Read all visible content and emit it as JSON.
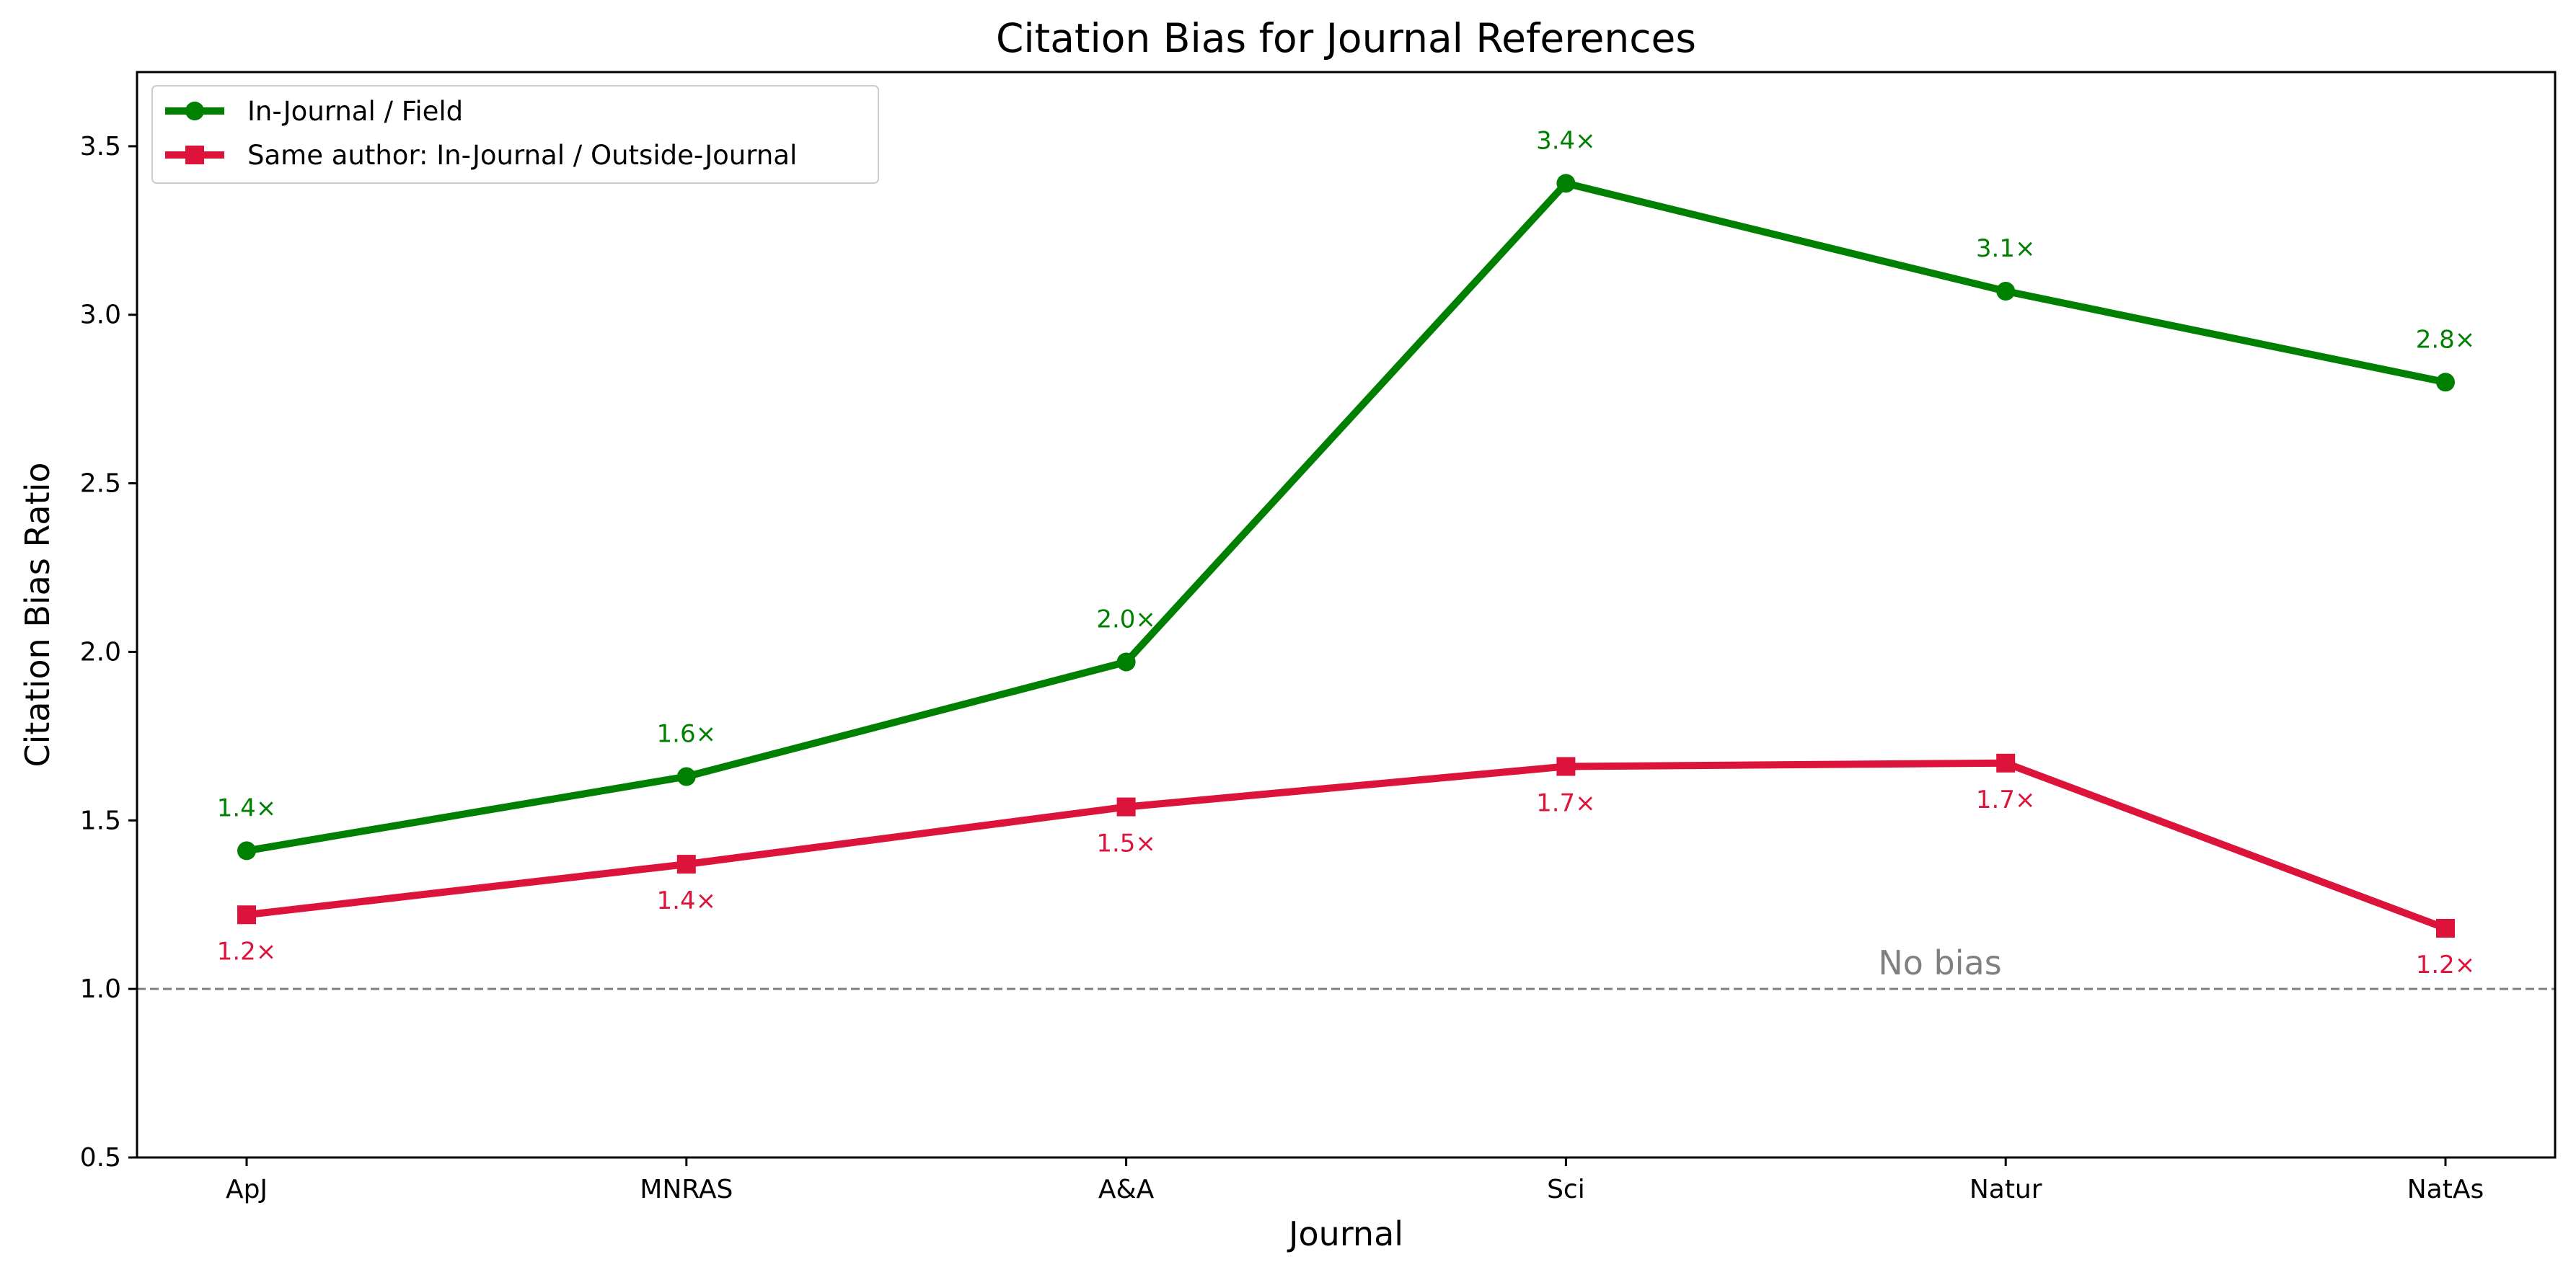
{
  "chart_data": {
    "type": "line",
    "title": "Citation Bias for Journal References",
    "xlabel": "Journal",
    "ylabel": "Citation Bias Ratio",
    "categories": [
      "ApJ",
      "MNRAS",
      "A&A",
      "Sci",
      "Natur",
      "NatAs"
    ],
    "ylim": [
      0.5,
      3.72
    ],
    "yticks": [
      0.5,
      1.0,
      1.5,
      2.0,
      2.5,
      3.0,
      3.5
    ],
    "ytick_labels": [
      "0.5",
      "1.0",
      "1.5",
      "2.0",
      "2.5",
      "3.0",
      "3.5"
    ],
    "grid": false,
    "legend_position": "top-left",
    "series": [
      {
        "name": "In-Journal / Field",
        "color": "#008000",
        "marker": "circle",
        "values": [
          1.41,
          1.63,
          1.97,
          3.39,
          3.07,
          2.8
        ],
        "labels": [
          "1.4×",
          "1.6×",
          "2.0×",
          "3.4×",
          "3.1×",
          "2.8×"
        ],
        "label_position": "above"
      },
      {
        "name": "Same author: In-Journal / Outside-Journal",
        "color": "#dc143c",
        "marker": "square",
        "values": [
          1.22,
          1.37,
          1.54,
          1.66,
          1.67,
          1.18
        ],
        "labels": [
          "1.2×",
          "1.4×",
          "1.5×",
          "1.7×",
          "1.7×",
          "1.2×"
        ],
        "label_position": "below"
      }
    ],
    "reference_line": {
      "value": 1.0,
      "label": "No bias",
      "color": "#808080",
      "style": "dashed"
    }
  }
}
